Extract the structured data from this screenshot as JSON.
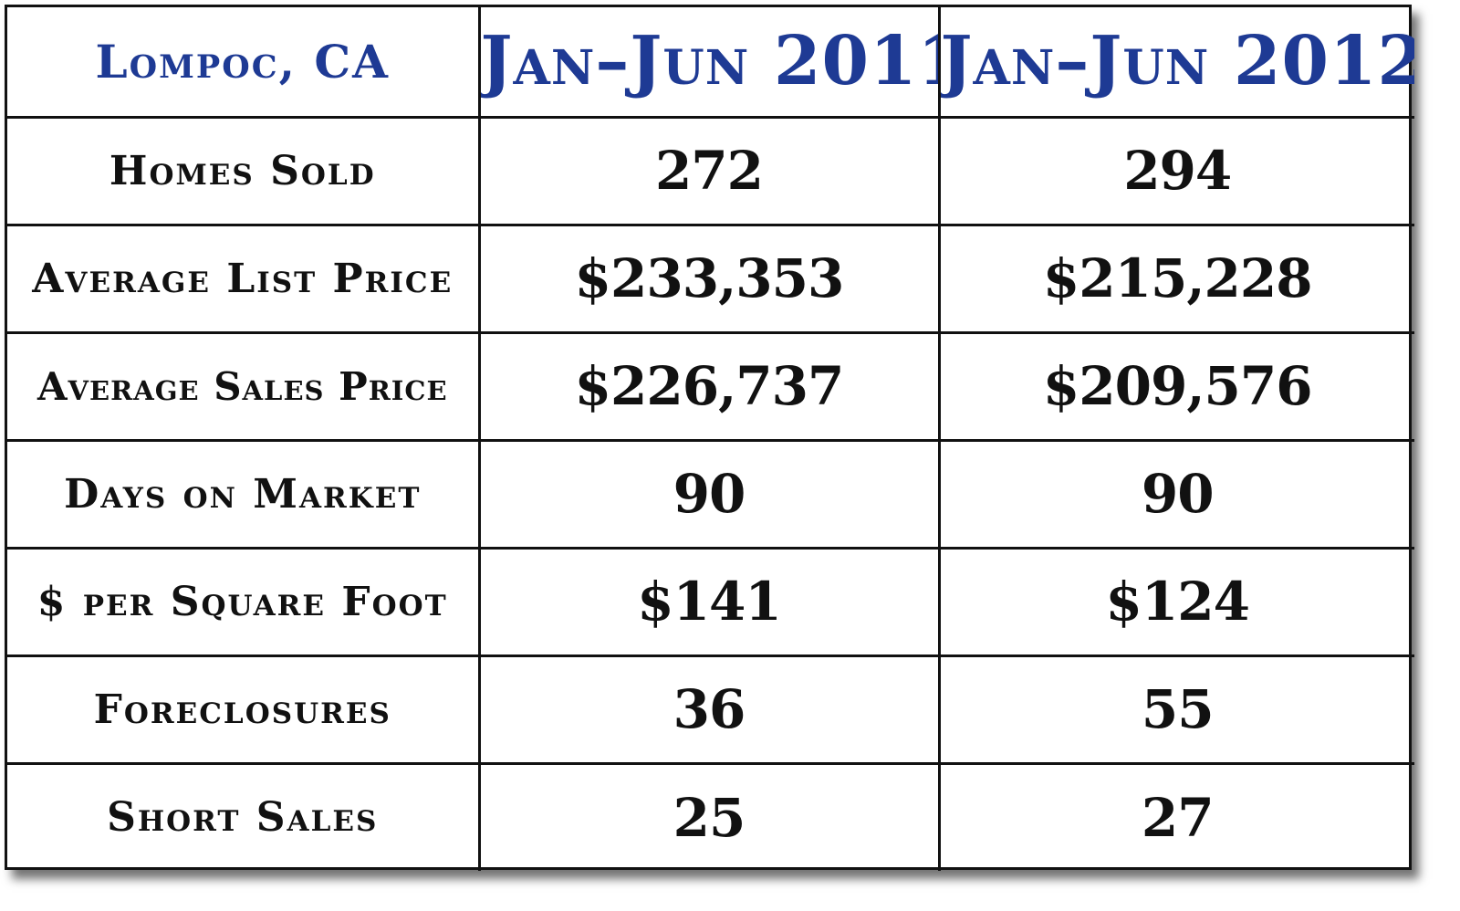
{
  "table": {
    "location": "Lompoc, CA",
    "periods": [
      "Jan–Jun 2011",
      "Jan–Jun 2012"
    ],
    "rows": [
      {
        "label": "Homes Sold",
        "v2011": "272",
        "v2012": "294"
      },
      {
        "label": "Average List Price",
        "v2011": "$233,353",
        "v2012": "$215,228"
      },
      {
        "label": "Average Sales Price",
        "v2011": "$226,737",
        "v2012": "$209,576"
      },
      {
        "label": "Days on Market",
        "v2011": "90",
        "v2012": "90"
      },
      {
        "label": "$ per Square Foot",
        "v2011": "$141",
        "v2012": "$124"
      },
      {
        "label": "Foreclosures",
        "v2011": "36",
        "v2012": "55"
      },
      {
        "label": "Short Sales",
        "v2011": "25",
        "v2012": "27"
      }
    ]
  },
  "colors": {
    "header_text": "#1e3a94",
    "body_text": "#111111",
    "grid": "#111111",
    "background": "#ffffff"
  }
}
